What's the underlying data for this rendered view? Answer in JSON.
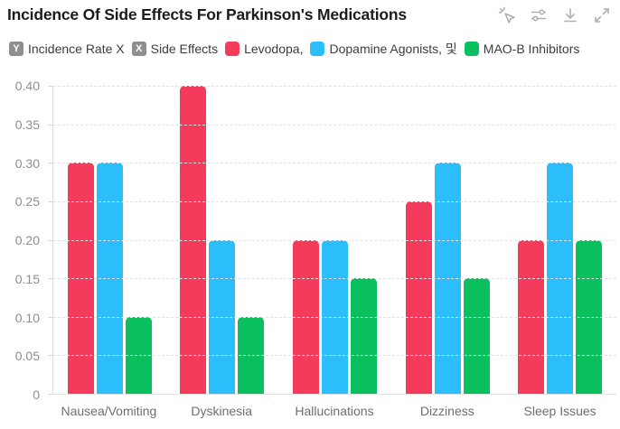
{
  "header": {
    "title": "Incidence Of Side Effects For Parkinson's Medications",
    "toolbar": [
      {
        "name": "magic-cursor-icon",
        "title": "interact"
      },
      {
        "name": "settings-sliders-icon",
        "title": "settings"
      },
      {
        "name": "download-icon",
        "title": "download"
      },
      {
        "name": "expand-icon",
        "title": "fullscreen"
      }
    ]
  },
  "legend": {
    "badge_color": "#8f8f8f",
    "items": [
      {
        "type": "badge",
        "badge": "Y",
        "label": "Incidence Rate X"
      },
      {
        "type": "badge",
        "badge": "X",
        "label": "Side Effects"
      },
      {
        "type": "swatch",
        "color": "#f43b5c",
        "label": "Levodopa,"
      },
      {
        "type": "swatch",
        "color": "#2cbdfb",
        "label": "Dopamine Agonists, 및"
      },
      {
        "type": "swatch",
        "color": "#0abf5d",
        "label": "MAO-B Inhibitors"
      }
    ]
  },
  "chart_data": {
    "type": "bar",
    "title": "Incidence Of Side Effects For Parkinson's Medications",
    "xlabel": "Side Effects",
    "ylabel": "Incidence Rate",
    "categories": [
      "Nausea/Vomiting",
      "Dyskinesia",
      "Hallucinations",
      "Dizziness",
      "Sleep Issues"
    ],
    "series": [
      {
        "name": "Levodopa",
        "color": "#f43b5c",
        "values": [
          0.3,
          0.4,
          0.2,
          0.25,
          0.2
        ]
      },
      {
        "name": "Dopamine Agonists",
        "color": "#2cbdfb",
        "values": [
          0.3,
          0.2,
          0.2,
          0.3,
          0.3
        ]
      },
      {
        "name": "MAO-B Inhibitors",
        "color": "#0abf5d",
        "values": [
          0.1,
          0.1,
          0.15,
          0.15,
          0.2
        ]
      }
    ],
    "ylim": [
      0,
      0.4
    ],
    "yticks": [
      0,
      0.05,
      0.1,
      0.15,
      0.2,
      0.25,
      0.3,
      0.35,
      0.4
    ],
    "ytick_labels": [
      "0",
      "0.05",
      "0.10",
      "0.15",
      "0.20",
      "0.25",
      "0.30",
      "0.35",
      "0.40"
    ],
    "grid": "horizontal-dashed",
    "legend_position": "top"
  }
}
